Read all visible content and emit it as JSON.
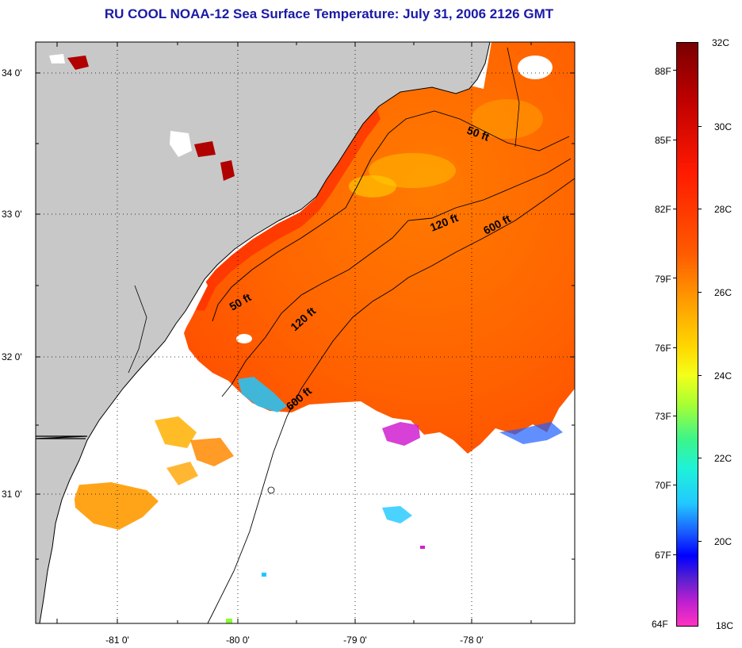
{
  "title": "RU COOL  NOAA-12  Sea Surface Temperature:  July 31, 2006 2126 GMT",
  "map": {
    "lat_labels": [
      "34 0'",
      "33 0'",
      "32 0'",
      "31 0'"
    ],
    "lon_labels": [
      "-81 0'",
      "-80 0'",
      "-79 0'",
      "-78 0'"
    ],
    "contour_labels": [
      "50 ft",
      "120 ft",
      "600 ft",
      "50 ft",
      "120 ft",
      "600 ft"
    ],
    "colors": {
      "land": "#c8c8c8",
      "ocean_warm": "#ff6a00",
      "ocean_hot": "#ff3a00",
      "cloud": "#ffffff",
      "frame": "#000000"
    }
  },
  "colorbar": {
    "fahrenheit": [
      "88F",
      "85F",
      "82F",
      "79F",
      "76F",
      "73F",
      "70F",
      "67F",
      "64F"
    ],
    "celsius": [
      "32C",
      "30C",
      "28C",
      "26C",
      "24C",
      "22C",
      "20C",
      "18C"
    ]
  }
}
